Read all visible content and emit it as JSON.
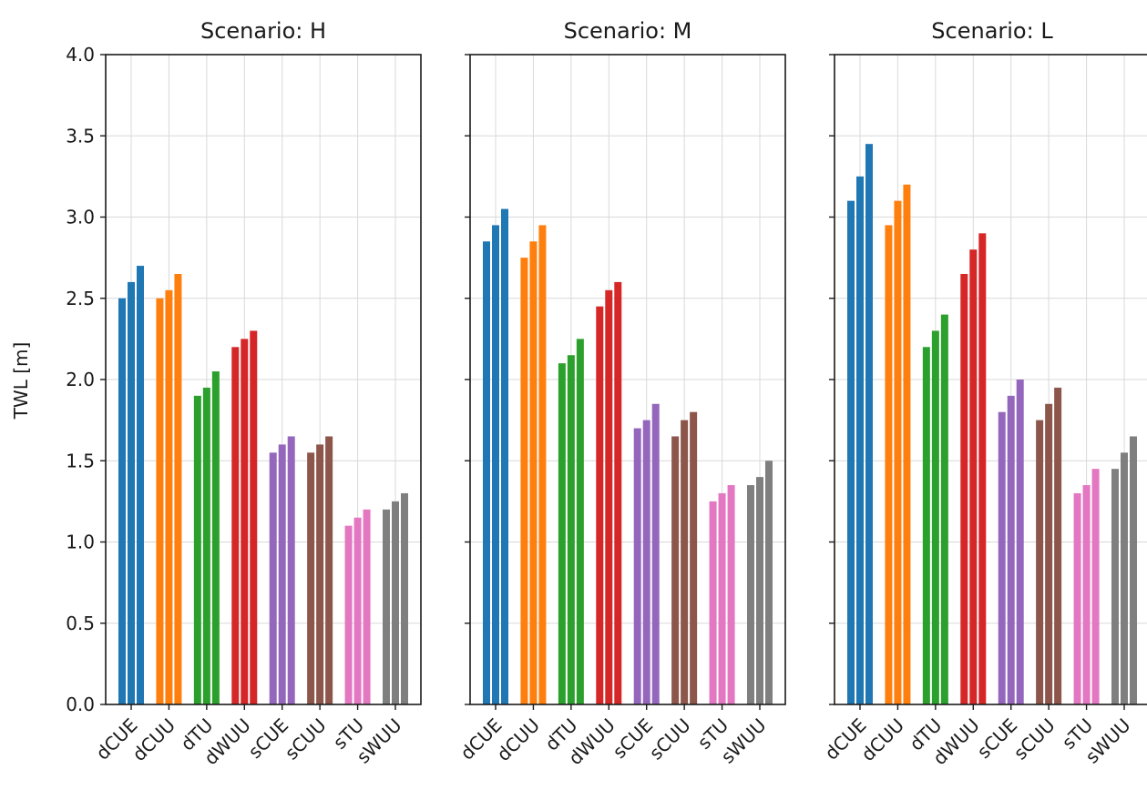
{
  "chart_data": {
    "type": "bar",
    "ylabel": "TWL [m]",
    "ylim": [
      0,
      4
    ],
    "yticks": [
      "0.0",
      "0.5",
      "1.0",
      "1.5",
      "2.0",
      "2.5",
      "3.0",
      "3.5",
      "4.0"
    ],
    "grid": true,
    "categories": [
      "dCUE",
      "dCUU",
      "dTU",
      "dWUU",
      "sCUE",
      "sCUU",
      "sTU",
      "sWUU"
    ],
    "colors": [
      "#1f77b4",
      "#ff7f0e",
      "#2ca02c",
      "#d62728",
      "#9467bd",
      "#8c564b",
      "#e377c2",
      "#7f7f7f"
    ],
    "panels": [
      {
        "title": "Scenario: H",
        "values": [
          [
            2.5,
            2.6,
            2.7
          ],
          [
            2.5,
            2.55,
            2.65
          ],
          [
            1.9,
            1.95,
            2.05
          ],
          [
            2.2,
            2.25,
            2.3
          ],
          [
            1.55,
            1.6,
            1.65
          ],
          [
            1.55,
            1.6,
            1.65
          ],
          [
            1.1,
            1.15,
            1.2
          ],
          [
            1.2,
            1.25,
            1.3
          ]
        ]
      },
      {
        "title": "Scenario: M",
        "values": [
          [
            2.85,
            2.95,
            3.05
          ],
          [
            2.75,
            2.85,
            2.95
          ],
          [
            2.1,
            2.15,
            2.25
          ],
          [
            2.45,
            2.55,
            2.6
          ],
          [
            1.7,
            1.75,
            1.85
          ],
          [
            1.65,
            1.75,
            1.8
          ],
          [
            1.25,
            1.3,
            1.35
          ],
          [
            1.35,
            1.4,
            1.5
          ]
        ]
      },
      {
        "title": "Scenario: L",
        "values": [
          [
            3.1,
            3.25,
            3.45
          ],
          [
            2.95,
            3.1,
            3.2
          ],
          [
            2.2,
            2.3,
            2.4
          ],
          [
            2.65,
            2.8,
            2.9
          ],
          [
            1.8,
            1.9,
            2.0
          ],
          [
            1.75,
            1.85,
            1.95
          ],
          [
            1.3,
            1.35,
            1.45
          ],
          [
            1.45,
            1.55,
            1.65
          ]
        ]
      }
    ]
  }
}
